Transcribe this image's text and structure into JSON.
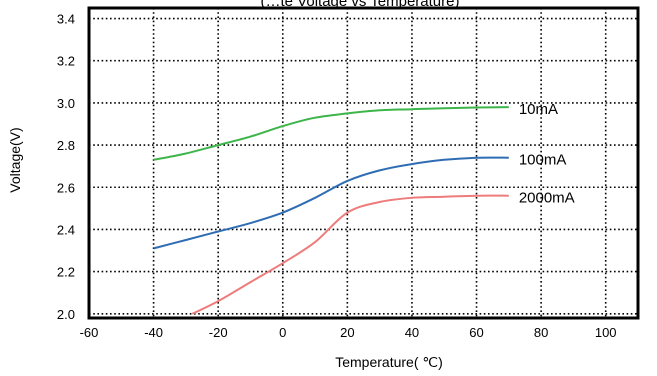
{
  "chart_data": {
    "type": "line",
    "title": "(…te Voltage vs Temperature)",
    "xlabel": "Temperature( ℃)",
    "ylabel": "Voltage(V)",
    "xlim": [
      -60,
      110
    ],
    "ylim": [
      1.98,
      3.45
    ],
    "x_ticks": [
      -60,
      -40,
      -20,
      0,
      20,
      40,
      60,
      80,
      100
    ],
    "y_ticks": [
      2.0,
      2.2,
      2.4,
      2.6,
      2.8,
      3.0,
      3.2,
      3.4
    ],
    "x_tick_labels": [
      "-60",
      "-40",
      "-20",
      "0",
      "20",
      "40",
      "60",
      "80",
      "100"
    ],
    "y_tick_labels": [
      "2.0",
      "2.2",
      "2.4",
      "2.6",
      "2.8",
      "3.0",
      "3.2",
      "3.4"
    ],
    "grid": true,
    "grid_style": "dotted",
    "series": [
      {
        "name": "10mA",
        "color": "#3db54a",
        "x": [
          -40,
          -30,
          -20,
          -10,
          0,
          10,
          20,
          30,
          40,
          50,
          60,
          70
        ],
        "y": [
          2.73,
          2.76,
          2.8,
          2.84,
          2.89,
          2.93,
          2.95,
          2.965,
          2.97,
          2.975,
          2.978,
          2.98
        ]
      },
      {
        "name": "100mA",
        "color": "#2f6db3",
        "x": [
          -40,
          -30,
          -20,
          -10,
          0,
          10,
          20,
          30,
          40,
          50,
          60,
          70
        ],
        "y": [
          2.31,
          2.35,
          2.39,
          2.43,
          2.48,
          2.55,
          2.63,
          2.68,
          2.71,
          2.73,
          2.74,
          2.74
        ]
      },
      {
        "name": "2000mA",
        "color": "#ee7c7c",
        "x": [
          -28,
          -20,
          -10,
          0,
          10,
          20,
          30,
          40,
          50,
          60,
          70
        ],
        "y": [
          2.0,
          2.06,
          2.15,
          2.24,
          2.34,
          2.48,
          2.53,
          2.55,
          2.555,
          2.56,
          2.56
        ]
      }
    ]
  }
}
